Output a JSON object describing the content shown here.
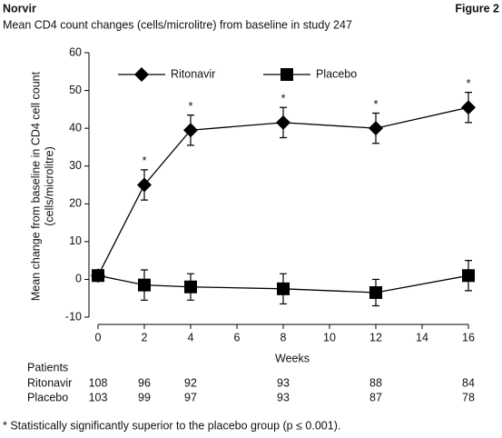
{
  "chart_data": {
    "type": "line",
    "header": "Norvir",
    "figure_label": "Figure 2",
    "title": "Mean CD4 count changes (cells/microlitre) from baseline in study 247",
    "ylabel": [
      "Mean change from baseline in CD4 cell count",
      "(cells/microlitre)"
    ],
    "xlabel": "Weeks",
    "x": [
      0,
      2,
      4,
      8,
      12,
      16
    ],
    "series": [
      {
        "name": "Ritonavir",
        "color": "#000000",
        "marker": "diamond",
        "values": [
          1,
          25,
          39.5,
          41.5,
          40,
          45.5
        ],
        "errors": [
          1,
          4,
          4,
          4,
          4,
          4
        ]
      },
      {
        "name": "Placebo",
        "color": "#000000",
        "marker": "square",
        "values": [
          1,
          -1.5,
          -2,
          -2.5,
          -3.5,
          1
        ],
        "errors": [
          1,
          4,
          3.5,
          4,
          3.5,
          4
        ]
      }
    ],
    "significance": [
      null,
      "*",
      "*",
      "*",
      "*",
      "*"
    ],
    "xlim": [
      0,
      16
    ],
    "xticks": [
      0,
      2,
      4,
      6,
      8,
      10,
      12,
      14,
      16
    ],
    "ylim": [
      -10,
      60
    ],
    "yticks": [
      -10,
      0,
      10,
      20,
      30,
      40,
      50,
      60
    ],
    "patients": {
      "label": "Patients",
      "rows": [
        {
          "name": "Ritonavir",
          "counts": [
            108,
            96,
            92,
            93,
            88,
            84
          ]
        },
        {
          "name": "Placebo",
          "counts": [
            103,
            99,
            97,
            93,
            87,
            78
          ]
        }
      ]
    },
    "footnote": "* Statistically significantly superior to the placebo group (p ≤ 0.001)."
  }
}
